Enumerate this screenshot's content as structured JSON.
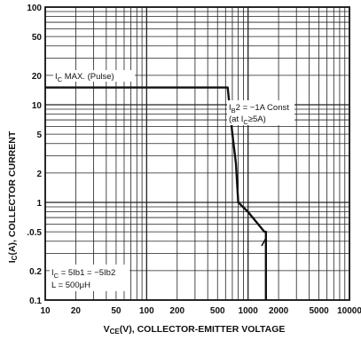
{
  "chart_data": {
    "type": "line",
    "title": "",
    "xlabel": "V_CE(V), COLLECTOR-EMITTER VOLTAGE",
    "ylabel": "I_C(A), COLLECTOR CURRENT",
    "x_scale": "log",
    "y_scale": "log",
    "xlim": [
      10,
      10000
    ],
    "ylim": [
      0.1,
      100
    ],
    "grid": true,
    "x_ticks": [
      {
        "value": 10,
        "label": "10"
      },
      {
        "value": 20,
        "label": "20"
      },
      {
        "value": 50,
        "label": "50"
      },
      {
        "value": 100,
        "label": "100"
      },
      {
        "value": 200,
        "label": "200"
      },
      {
        "value": 500,
        "label": "500"
      },
      {
        "value": 1000,
        "label": "1000"
      },
      {
        "value": 2000,
        "label": "2000"
      },
      {
        "value": 5000,
        "label": "5000"
      },
      {
        "value": 10000,
        "label": "10000"
      }
    ],
    "y_ticks": [
      {
        "value": 100,
        "label": "100"
      },
      {
        "value": 50,
        "label": "50"
      },
      {
        "value": 20,
        "label": "20"
      },
      {
        "value": 10,
        "label": "10"
      },
      {
        "value": 5,
        "label": "5"
      },
      {
        "value": 2,
        "label": "2"
      },
      {
        "value": 1,
        "label": "1"
      },
      {
        "value": 0.5,
        "label": ".0.5"
      },
      {
        "value": 0.2,
        "label": "0.2"
      },
      {
        "value": 0.1,
        "label": "0.1"
      }
    ],
    "series": [
      {
        "x": [
          10,
          600,
          630,
          700,
          760,
          800,
          1000,
          1450,
          1500,
          1500
        ],
        "y": [
          15,
          15,
          15,
          5,
          2.5,
          1,
          0.8,
          0.5,
          0.5,
          0.1
        ]
      }
    ],
    "annotations": {
      "ic_max": "I",
      "ic_max_sub": "C",
      "ic_max_rest": " MAX. (Pulse)",
      "ib2_line1_a": "I",
      "ib2_line1_sub": "B",
      "ib2_line1_b": "2 = −1A Const",
      "ib2_line2_a": "(at I",
      "ib2_line2_sub": "C",
      "ib2_line2_b": "≥5A)",
      "cond_line1_a": "I",
      "cond_line1_sub": "C",
      "cond_line1_b": " = 5Ib1 = −5Ib2",
      "cond_line2": "L = 500μH"
    },
    "ylabel_parts": {
      "a": "I",
      "sub": "C",
      "b": "(A), COLLECTOR CURRENT"
    },
    "xlabel_parts": {
      "a": "V",
      "sub": "CE",
      "b": "(V), COLLECTOR-EMITTER VOLTAGE"
    },
    "colors": {
      "line": "#111111",
      "grid": "#222222",
      "background": "#ffffff"
    }
  }
}
